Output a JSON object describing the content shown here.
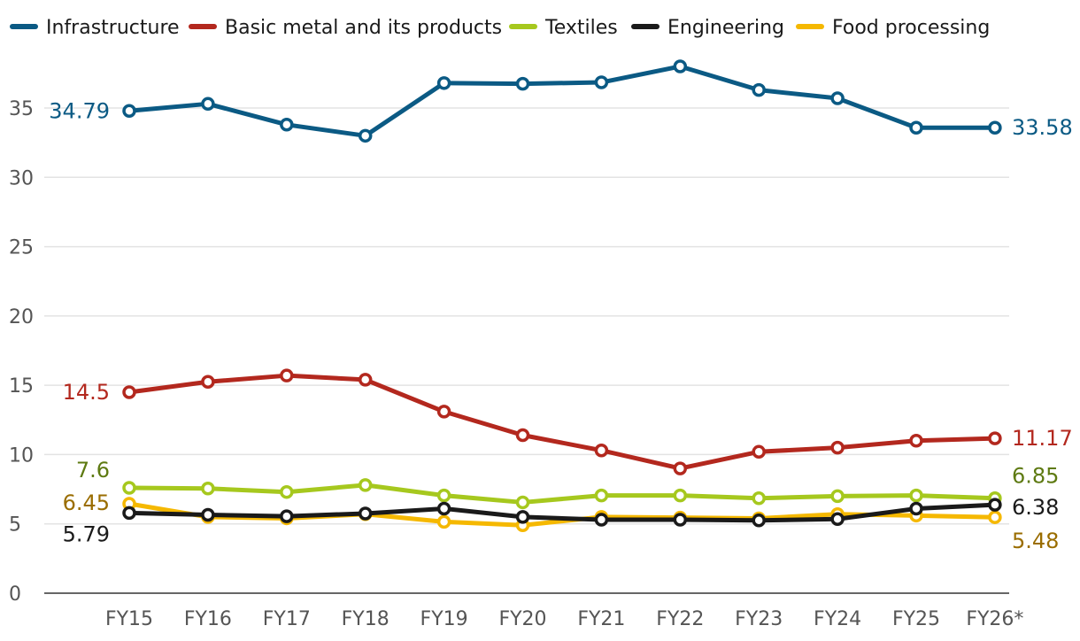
{
  "chart_data": {
    "type": "line",
    "categories": [
      "FY15",
      "FY16",
      "FY17",
      "FY18",
      "FY19",
      "FY20",
      "FY21",
      "FY22",
      "FY23",
      "FY24",
      "FY25",
      "FY26*"
    ],
    "ylim": [
      0,
      38
    ],
    "yticks": [
      0,
      5,
      10,
      15,
      20,
      25,
      30,
      35
    ],
    "grid": true,
    "legend_position": "top",
    "series": [
      {
        "name": "Infrastructure",
        "color": "#0b5a84",
        "label_color": "#0b5a84",
        "values": [
          34.79,
          35.3,
          33.8,
          33.0,
          36.8,
          36.75,
          36.85,
          38.0,
          36.3,
          35.7,
          33.58,
          33.58
        ],
        "first_label": "34.79",
        "last_label": "33.58"
      },
      {
        "name": "Basic metal and its products",
        "color": "#b3281e",
        "label_color": "#b3281e",
        "values": [
          14.5,
          15.25,
          15.7,
          15.4,
          13.1,
          11.4,
          10.3,
          9.0,
          10.2,
          10.5,
          11.0,
          11.17
        ],
        "first_label": "14.5",
        "last_label": "11.17"
      },
      {
        "name": "Textiles",
        "color": "#a6c81e",
        "label_color": "#5e7a12",
        "values": [
          7.6,
          7.55,
          7.3,
          7.8,
          7.05,
          6.55,
          7.05,
          7.05,
          6.85,
          7.0,
          7.05,
          6.85
        ],
        "first_label": "7.6",
        "last_label": "6.85"
      },
      {
        "name": "Engineering",
        "color": "#1a1a1a",
        "label_color": "#1a1a1a",
        "values": [
          5.79,
          5.65,
          5.55,
          5.75,
          6.1,
          5.5,
          5.3,
          5.3,
          5.25,
          5.35,
          6.1,
          6.38
        ],
        "first_label": "5.79",
        "last_label": "6.38"
      },
      {
        "name": "Food processing",
        "color": "#f5b800",
        "label_color": "#9a6d00",
        "values": [
          6.45,
          5.5,
          5.4,
          5.7,
          5.15,
          4.9,
          5.5,
          5.45,
          5.4,
          5.7,
          5.6,
          5.48
        ],
        "first_label": "6.45",
        "last_label": "5.48"
      }
    ]
  }
}
